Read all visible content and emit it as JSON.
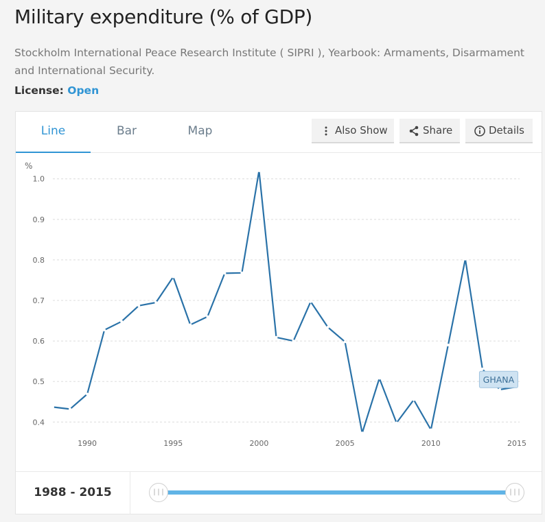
{
  "header": {
    "title": "Military expenditure (% of GDP)",
    "source": "Stockholm International Peace Research Institute ( SIPRI ), Yearbook: Armaments, Disarmament and International Security.",
    "license_label": "License:",
    "license_value": "Open"
  },
  "tabs": [
    {
      "label": "Line",
      "active": true
    },
    {
      "label": "Bar",
      "active": false
    },
    {
      "label": "Map",
      "active": false
    }
  ],
  "toolbar": {
    "also_show": "Also Show",
    "share": "Share",
    "details": "Details"
  },
  "footer": {
    "range": "1988 - 2015",
    "handle_glyph": "|||"
  },
  "colors": {
    "line": "#2a72a8",
    "accent": "#2f94d4",
    "slider": "#61b4e6"
  },
  "chart_data": {
    "type": "line",
    "ylabel": "%",
    "xlim": [
      1988,
      2015
    ],
    "ylim": [
      0.37,
      1.03
    ],
    "yticks": [
      0.4,
      0.5,
      0.6,
      0.7,
      0.8,
      0.9,
      1.0
    ],
    "xticks": [
      1990,
      1995,
      2000,
      2005,
      2010,
      2015
    ],
    "grid": "horizontal dashed",
    "series": [
      {
        "name": "GHANA",
        "x": [
          1988,
          1989,
          1990,
          1991,
          1992,
          1993,
          1994,
          1995,
          1996,
          1997,
          1998,
          1999,
          2000,
          2001,
          2002,
          2003,
          2004,
          2005,
          2006,
          2007,
          2008,
          2009,
          2010,
          2011,
          2012,
          2013,
          2014,
          2015
        ],
        "values": [
          0.437,
          0.432,
          0.469,
          0.627,
          0.648,
          0.687,
          0.695,
          0.758,
          0.64,
          0.66,
          0.767,
          0.768,
          1.02,
          0.609,
          0.6,
          0.697,
          0.634,
          0.598,
          0.373,
          0.508,
          0.398,
          0.455,
          0.381,
          0.59,
          0.802,
          0.531,
          0.48,
          0.487
        ]
      }
    ]
  }
}
